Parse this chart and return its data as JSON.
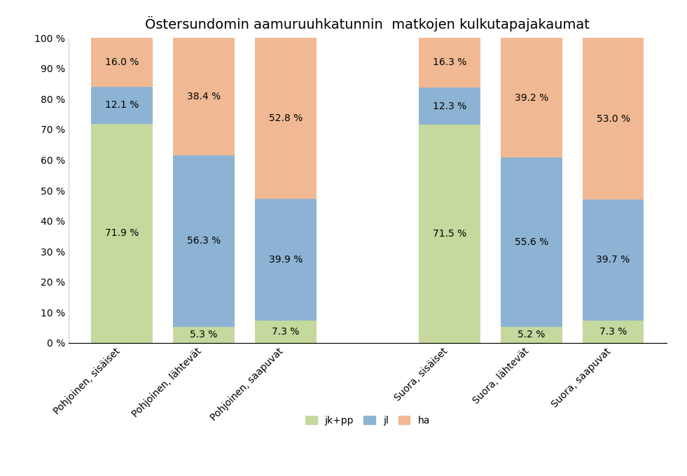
{
  "title": "Östersundomin aamuruuhkatunnin  matkojen kulkutapajakaumat",
  "categories": [
    "Pohjoinen, sisäiset",
    "Pohjoinen, lähtevät",
    "Pohjoinen, saapuvat",
    "Suora, sisäiset",
    "Suora, lähtevät",
    "Suora, saapuvat"
  ],
  "jk_pp": [
    71.9,
    5.3,
    7.3,
    71.5,
    5.2,
    7.3
  ],
  "jl": [
    12.1,
    56.3,
    39.9,
    12.3,
    55.6,
    39.7
  ],
  "ha": [
    16.0,
    38.4,
    52.8,
    16.3,
    39.2,
    53.0
  ],
  "color_jk_pp": "#c5d89d",
  "color_jl": "#8db3d4",
  "color_ha": "#f0b993",
  "ylabel_ticks": [
    "0 %",
    "10 %",
    "20 %",
    "30 %",
    "40 %",
    "50 %",
    "60 %",
    "70 %",
    "80 %",
    "90 %",
    "100 %"
  ],
  "bar_width": 0.75,
  "legend_labels": [
    "jk+pp",
    "jl",
    "ha"
  ],
  "background_color": "#ffffff",
  "title_fontsize": 14,
  "label_fontsize": 10,
  "tick_fontsize": 10,
  "legend_fontsize": 10
}
